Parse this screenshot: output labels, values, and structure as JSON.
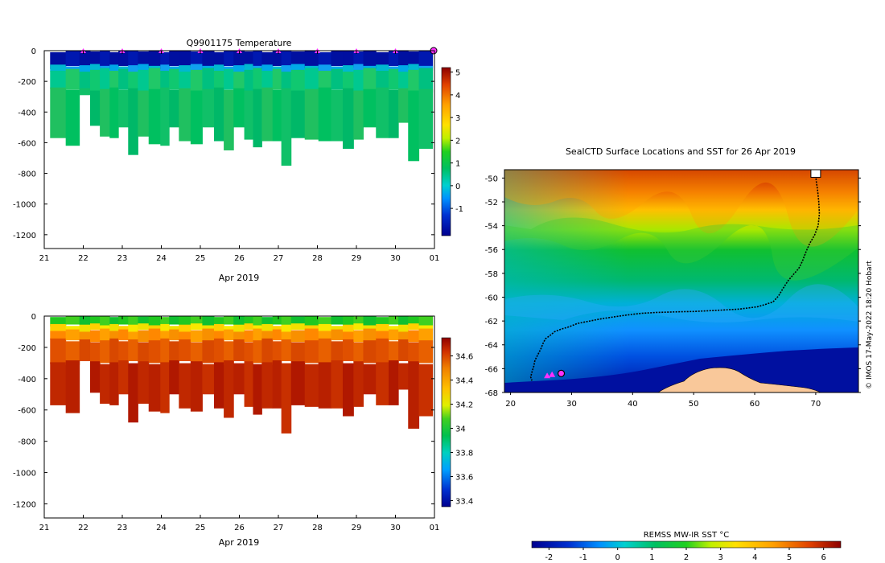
{
  "chart_data": [
    {
      "type": "heatmap",
      "title": "Q9901175  Temperature",
      "xlabel": "Apr 2019",
      "ylabel": "",
      "x_ticks": [
        "21",
        "22",
        "23",
        "24",
        "25",
        "26",
        "27",
        "28",
        "29",
        "30",
        "01"
      ],
      "y_ticks": [
        0,
        -200,
        -400,
        -600,
        -800,
        -1000,
        -1200
      ],
      "xlim": [
        21,
        31
      ],
      "ylim": [
        -1290,
        0
      ],
      "profile_days": [
        21.35,
        21.75,
        22.05,
        22.3,
        22.55,
        22.8,
        23.0,
        23.3,
        23.5,
        23.85,
        24.1,
        24.3,
        24.6,
        24.9,
        25.2,
        25.5,
        25.7,
        26.0,
        26.25,
        26.45,
        26.7,
        27.0,
        27.15,
        27.5,
        27.85,
        28.2,
        28.5,
        28.8,
        29.05,
        29.3,
        29.7,
        29.95,
        30.2,
        30.45,
        30.75
      ],
      "profile_depths": [
        -570,
        -620,
        -290,
        -490,
        -560,
        -570,
        -500,
        -680,
        -560,
        -610,
        -620,
        -500,
        -590,
        -610,
        -500,
        -590,
        -650,
        -500,
        -580,
        -630,
        -590,
        -590,
        -750,
        -570,
        -580,
        -590,
        -590,
        -640,
        -580,
        -500,
        -570,
        -570,
        -470,
        -720,
        -640
      ],
      "surface_markers": [
        22,
        23,
        24,
        25,
        26,
        27,
        28,
        29,
        30
      ],
      "colorbar": {
        "ticks": [
          5,
          4,
          3,
          2,
          1,
          0,
          -1
        ],
        "range": [
          -2.2,
          5.2
        ]
      }
    },
    {
      "type": "heatmap",
      "title": "",
      "xlabel": "Apr 2019",
      "ylabel": "",
      "x_ticks": [
        "21",
        "22",
        "23",
        "24",
        "25",
        "26",
        "27",
        "28",
        "29",
        "30",
        "01"
      ],
      "y_ticks": [
        0,
        -200,
        -400,
        -600,
        -800,
        -1000,
        -1200
      ],
      "xlim": [
        21,
        31
      ],
      "ylim": [
        -1290,
        0
      ],
      "colorbar": {
        "ticks": [
          "34.6",
          "34.4",
          "34.2",
          "34",
          "33.8",
          "33.6",
          "33.4"
        ],
        "range": [
          33.35,
          34.75
        ]
      }
    },
    {
      "type": "heatmap",
      "title": "SealCTD Surface Locations and SST for 26 Apr 2019",
      "xlabel": "",
      "ylabel": "",
      "x_ticks": [
        "20",
        "30",
        "40",
        "50",
        "60",
        "70"
      ],
      "y_ticks": [
        "-50",
        "-52",
        "-54",
        "-56",
        "-58",
        "-60",
        "-62",
        "-64",
        "-66",
        "-68"
      ],
      "xlim": [
        19,
        77
      ],
      "ylim": [
        -68,
        -49.3
      ],
      "track": {
        "lon": [
          70.0,
          70.1,
          70.3,
          70.5,
          70.6,
          70.4,
          69.8,
          69.0,
          68.4,
          67.8,
          67.2,
          66.5,
          65.5,
          64.6,
          63.9,
          63.0,
          61.8,
          60.5,
          59.0,
          57.5,
          55.8,
          54.0,
          52.0,
          50.0,
          48.0,
          46.0,
          44.0,
          41.5,
          39.0,
          37.0,
          35.0,
          33.0,
          31.0,
          29.5,
          28.2,
          27.2,
          26.5,
          25.7,
          25.3,
          25.0,
          24.5,
          24.0,
          23.8,
          23.5,
          23.3,
          23.5
        ],
        "lat": [
          -49.8,
          -50.3,
          -51.0,
          -52.0,
          -53.0,
          -54.0,
          -54.8,
          -55.5,
          -56.2,
          -57.0,
          -57.6,
          -58.0,
          -58.6,
          -59.3,
          -59.9,
          -60.4,
          -60.6,
          -60.8,
          -60.9,
          -61.0,
          -61.05,
          -61.1,
          -61.15,
          -61.2,
          -61.22,
          -61.25,
          -61.28,
          -61.35,
          -61.5,
          -61.65,
          -61.8,
          -62.0,
          -62.2,
          -62.5,
          -62.7,
          -62.9,
          -63.2,
          -63.5,
          -63.9,
          -64.3,
          -64.8,
          -65.3,
          -65.8,
          -66.3,
          -66.7,
          -67.0
        ]
      },
      "deployment_start": {
        "lon": 70.0,
        "lat": -49.6
      },
      "current_location": {
        "lon": 28.3,
        "lat": -66.4
      },
      "recent_positions": {
        "lon": [
          26.0,
          26.8
        ],
        "lat": [
          -66.6,
          -66.5
        ]
      },
      "colorbar": {
        "label": "REMSS MW-IR SST °C",
        "ticks": [
          "-2",
          "-1",
          "0",
          "1",
          "2",
          "3",
          "4",
          "5",
          "6"
        ],
        "range": [
          -2.5,
          6.5
        ]
      }
    }
  ],
  "credit": "© IMOS 17-May-2022 18:20 Hobart"
}
